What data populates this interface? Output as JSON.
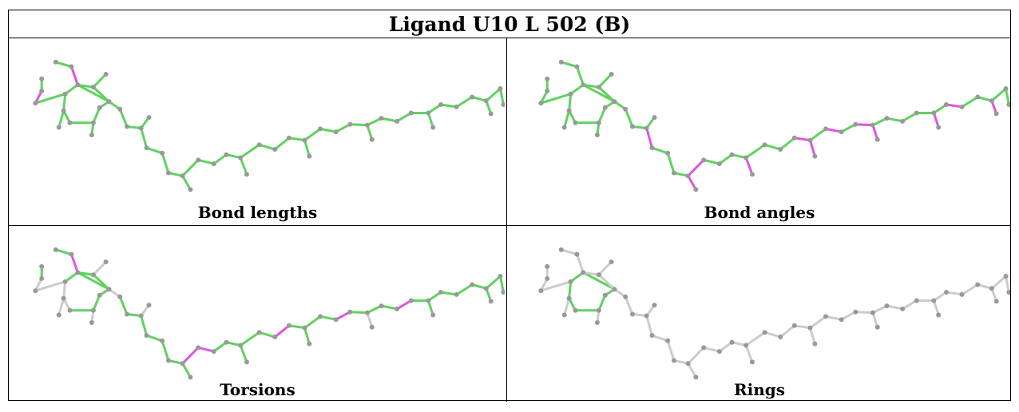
{
  "title": "Ligand U10 L 502 (B)",
  "colors": {
    "ok": "#5fd35f",
    "outlier": "#e055e0",
    "neutral": "#cccccc",
    "atom": "#999999"
  },
  "panels": [
    {
      "caption": "Bond lengths"
    },
    {
      "caption": "Bond angles"
    },
    {
      "caption": "Torsions"
    },
    {
      "caption": "Rings"
    }
  ]
}
